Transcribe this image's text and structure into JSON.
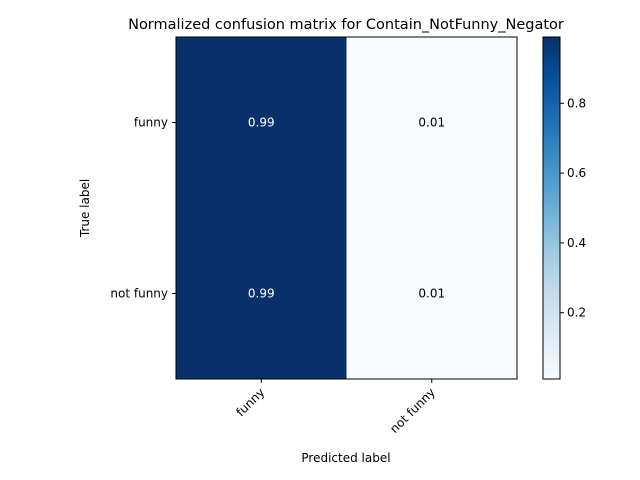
{
  "chart_data": {
    "type": "heatmap",
    "title": "Normalized confusion matrix for Contain_NotFunny_Negator",
    "xlabel": "Predicted label",
    "ylabel": "True label",
    "x_categories": [
      "funny",
      "not funny"
    ],
    "y_categories": [
      "funny",
      "not funny"
    ],
    "values": [
      [
        0.99,
        0.01
      ],
      [
        0.99,
        0.01
      ]
    ],
    "value_labels": [
      [
        "0.99",
        "0.01"
      ],
      [
        "0.99",
        "0.01"
      ]
    ],
    "colormap": "Blues",
    "colorbar": {
      "range": [
        0.01,
        0.99
      ],
      "ticks": [
        0.2,
        0.4,
        0.6,
        0.8
      ],
      "tick_labels": [
        "0.2",
        "0.4",
        "0.6",
        "0.8"
      ]
    },
    "colors": {
      "high": "#08306b",
      "low": "#f7fbff"
    }
  }
}
